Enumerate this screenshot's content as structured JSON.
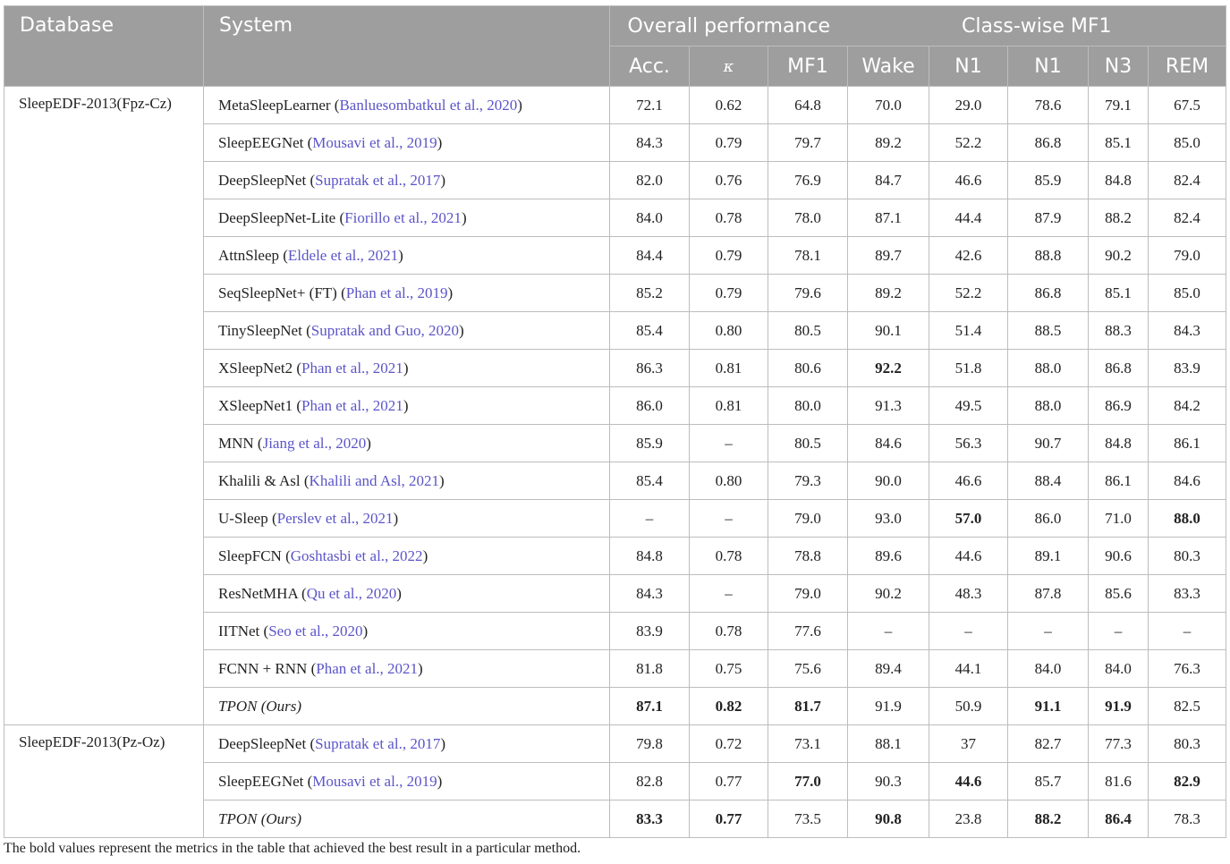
{
  "header": {
    "database": "Database",
    "system": "System",
    "overall": "Overall performance",
    "classwise": "Class-wise MF1",
    "cols": [
      "Acc.",
      "κ",
      "MF1",
      "Wake",
      "N1",
      "N1",
      "N3",
      "REM"
    ]
  },
  "groups": [
    {
      "database": "SleepEDF-2013(Fpz-Cz)",
      "rows": [
        {
          "name": "MetaSleepLearner",
          "cite": "Banluesombatkul et al., 2020",
          "italic": false,
          "vals": [
            "72.1",
            "0.62",
            "64.8",
            "70.0",
            "29.0",
            "78.6",
            "79.1",
            "67.5"
          ],
          "bold": []
        },
        {
          "name": "SleepEEGNet",
          "cite": "Mousavi et al., 2019",
          "italic": false,
          "vals": [
            "84.3",
            "0.79",
            "79.7",
            "89.2",
            "52.2",
            "86.8",
            "85.1",
            "85.0"
          ],
          "bold": []
        },
        {
          "name": "DeepSleepNet",
          "cite": "Supratak et al., 2017",
          "italic": false,
          "vals": [
            "82.0",
            "0.76",
            "76.9",
            "84.7",
            "46.6",
            "85.9",
            "84.8",
            "82.4"
          ],
          "bold": []
        },
        {
          "name": "DeepSleepNet-Lite",
          "cite": "Fiorillo et al., 2021",
          "italic": false,
          "vals": [
            "84.0",
            "0.78",
            "78.0",
            "87.1",
            "44.4",
            "87.9",
            "88.2",
            "82.4"
          ],
          "bold": []
        },
        {
          "name": "AttnSleep",
          "cite": "Eldele et al., 2021",
          "italic": false,
          "vals": [
            "84.4",
            "0.79",
            "78.1",
            "89.7",
            "42.6",
            "88.8",
            "90.2",
            "79.0"
          ],
          "bold": []
        },
        {
          "name": "SeqSleepNet+ (FT)",
          "cite": "Phan et al., 2019",
          "italic": false,
          "vals": [
            "85.2",
            "0.79",
            "79.6",
            "89.2",
            "52.2",
            "86.8",
            "85.1",
            "85.0"
          ],
          "bold": []
        },
        {
          "name": "TinySleepNet",
          "cite": "Supratak and Guo, 2020",
          "italic": false,
          "vals": [
            "85.4",
            "0.80",
            "80.5",
            "90.1",
            "51.4",
            "88.5",
            "88.3",
            "84.3"
          ],
          "bold": []
        },
        {
          "name": "XSleepNet2",
          "cite": "Phan et al., 2021",
          "italic": false,
          "vals": [
            "86.3",
            "0.81",
            "80.6",
            "92.2",
            "51.8",
            "88.0",
            "86.8",
            "83.9"
          ],
          "bold": [
            3
          ]
        },
        {
          "name": "XSleepNet1",
          "cite": "Phan et al., 2021",
          "italic": false,
          "vals": [
            "86.0",
            "0.81",
            "80.0",
            "91.3",
            "49.5",
            "88.0",
            "86.9",
            "84.2"
          ],
          "bold": []
        },
        {
          "name": "MNN",
          "cite": "Jiang et al., 2020",
          "italic": false,
          "vals": [
            "85.9",
            "–",
            "80.5",
            "84.6",
            "56.3",
            "90.7",
            "84.8",
            "86.1"
          ],
          "bold": []
        },
        {
          "name": "Khalili & Asl",
          "cite": "Khalili and Asl, 2021",
          "italic": false,
          "vals": [
            "85.4",
            "0.80",
            "79.3",
            "90.0",
            "46.6",
            "88.4",
            "86.1",
            "84.6"
          ],
          "bold": []
        },
        {
          "name": "U-Sleep",
          "cite": "Perslev et al., 2021",
          "italic": false,
          "vals": [
            "–",
            "–",
            "79.0",
            "93.0",
            "57.0",
            "86.0",
            "71.0",
            "88.0"
          ],
          "bold": [
            4,
            7
          ]
        },
        {
          "name": "SleepFCN",
          "cite": "Goshtasbi et al., 2022",
          "italic": false,
          "vals": [
            "84.8",
            "0.78",
            "78.8",
            "89.6",
            "44.6",
            "89.1",
            "90.6",
            "80.3"
          ],
          "bold": []
        },
        {
          "name": "ResNetMHA",
          "cite": "Qu et al., 2020",
          "italic": false,
          "vals": [
            "84.3",
            "–",
            "79.0",
            "90.2",
            "48.3",
            "87.8",
            "85.6",
            "83.3"
          ],
          "bold": []
        },
        {
          "name": "IITNet",
          "cite": "Seo et al., 2020",
          "italic": false,
          "vals": [
            "83.9",
            "0.78",
            "77.6",
            "–",
            "–",
            "–",
            "–",
            "–"
          ],
          "bold": []
        },
        {
          "name": "FCNN + RNN",
          "cite": "Phan et al., 2021",
          "italic": false,
          "vals": [
            "81.8",
            "0.75",
            "75.6",
            "89.4",
            "44.1",
            "84.0",
            "84.0",
            "76.3"
          ],
          "bold": []
        },
        {
          "name": "TPON (Ours)",
          "cite": "",
          "italic": true,
          "vals": [
            "87.1",
            "0.82",
            "81.7",
            "91.9",
            "50.9",
            "91.1",
            "91.9",
            "82.5"
          ],
          "bold": [
            0,
            1,
            2,
            5,
            6
          ]
        }
      ]
    },
    {
      "database": "SleepEDF-2013(Pz-Oz)",
      "rows": [
        {
          "name": "DeepSleepNet",
          "cite": "Supratak et al., 2017",
          "italic": false,
          "vals": [
            "79.8",
            "0.72",
            "73.1",
            "88.1",
            "37",
            "82.7",
            "77.3",
            "80.3"
          ],
          "bold": []
        },
        {
          "name": "SleepEEGNet",
          "cite": "Mousavi et al., 2019",
          "italic": false,
          "vals": [
            "82.8",
            "0.77",
            "77.0",
            "90.3",
            "44.6",
            "85.7",
            "81.6",
            "82.9"
          ],
          "bold": [
            2,
            4,
            7
          ]
        },
        {
          "name": "TPON (Ours)",
          "cite": "",
          "italic": true,
          "vals": [
            "83.3",
            "0.77",
            "73.5",
            "90.8",
            "23.8",
            "88.2",
            "86.4",
            "78.3"
          ],
          "bold": [
            0,
            1,
            3,
            5,
            6
          ]
        }
      ]
    }
  ],
  "footnote": "The bold values represent the metrics in the table that achieved the best result in a particular method."
}
